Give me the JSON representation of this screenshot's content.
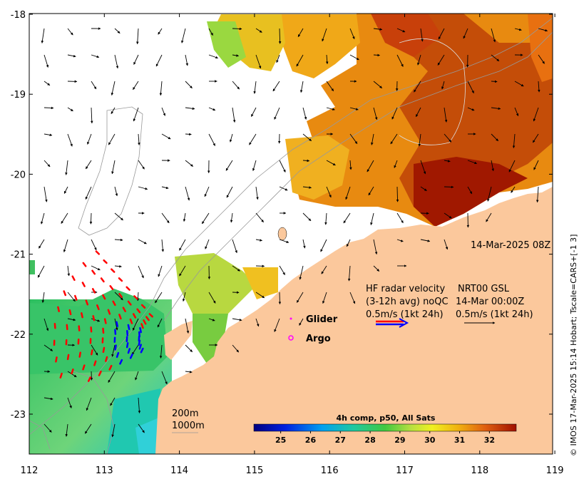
{
  "map": {
    "lon_ticks": [
      "112",
      "113",
      "114",
      "115",
      "116",
      "117",
      "118",
      "119"
    ],
    "lat_ticks": [
      "-18",
      "-19",
      "-20",
      "-21",
      "-22",
      "-23"
    ],
    "timestamp": "14-Mar-2025 08Z",
    "credit": "© IMOS 17-Mar-2025 15:14 Hobart; Tscale=CARS+[-1 3]"
  },
  "legend": {
    "glider_label": "Glider",
    "argo_label": "Argo",
    "glider_color": "#ff00ff",
    "argo_color": "#ff00ff"
  },
  "hf_radar": {
    "line1_left": "HF radar velocity",
    "line1_right": "NRT00 GSL",
    "line2_left": "(3-12h avg) noQC",
    "line2_right": "14-Mar 00:00Z",
    "line3_left": "0.5m/s (1kt 24h)",
    "line3_right": "0.5m/s (1kt 24h)",
    "arrow_colors": [
      "#ff0000",
      "#0000ff"
    ]
  },
  "isobaths": {
    "label_200": "200m",
    "label_1000": "1000m"
  },
  "colorbar": {
    "title": "4h comp, p50, All Sats",
    "ticks": [
      "25",
      "26",
      "27",
      "28",
      "29",
      "30",
      "31",
      "32"
    ],
    "min": 24.1,
    "max": 32.9
  },
  "colors": {
    "land": "#fbc89c",
    "warm": "#b22000",
    "mid": "#f0a020",
    "cool": "#1cbf5c"
  }
}
